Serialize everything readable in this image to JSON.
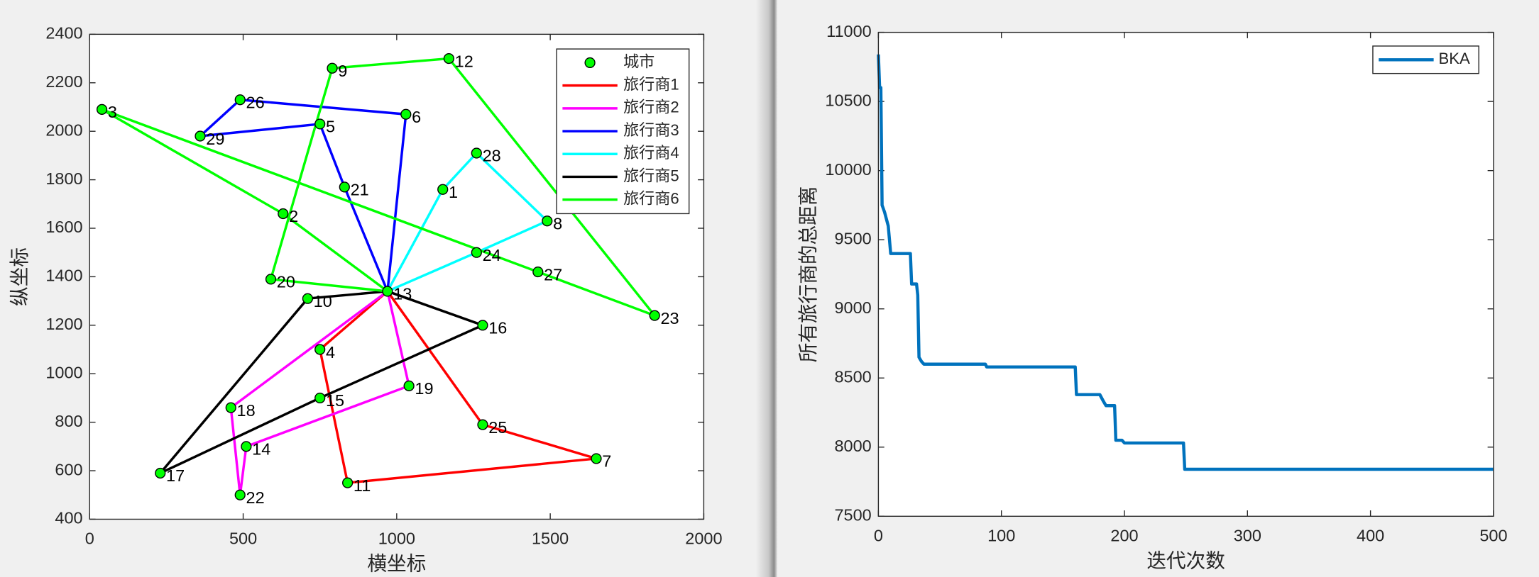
{
  "chart_data": [
    {
      "type": "route-map",
      "xlabel": "横坐标",
      "ylabel": "纵坐标",
      "xlim": [
        0,
        2000
      ],
      "xticks": [
        0,
        500,
        1000,
        1500,
        2000
      ],
      "ylim": [
        400,
        2400
      ],
      "yticks": [
        400,
        600,
        800,
        1000,
        1200,
        1400,
        1600,
        1800,
        2000,
        2200,
        2400
      ],
      "cities": {
        "name": "城市",
        "color": "#00ff00",
        "labels": [
          1,
          2,
          3,
          4,
          5,
          6,
          7,
          8,
          9,
          10,
          11,
          12,
          13,
          14,
          15,
          16,
          17,
          18,
          19,
          20,
          21,
          22,
          23,
          24,
          25,
          26,
          27,
          28,
          29
        ],
        "x": [
          1150,
          630,
          40,
          750,
          750,
          1030,
          1650,
          1490,
          790,
          710,
          840,
          1170,
          970,
          510,
          750,
          1280,
          230,
          460,
          1040,
          590,
          830,
          490,
          1840,
          1260,
          1280,
          490,
          1460,
          1260,
          360
        ],
        "y": [
          1760,
          1660,
          2090,
          1100,
          2030,
          2070,
          650,
          1630,
          2260,
          1310,
          550,
          2300,
          1340,
          700,
          900,
          1200,
          590,
          860,
          950,
          1390,
          1770,
          500,
          1240,
          1500,
          790,
          2130,
          1420,
          1910,
          1980
        ]
      },
      "series": [
        {
          "name": "旅行商1",
          "color": "#ff0000",
          "route": [
            13,
            4,
            11,
            7,
            25,
            13
          ]
        },
        {
          "name": "旅行商2",
          "color": "#ff00ff",
          "route": [
            13,
            18,
            22,
            14,
            19,
            13
          ]
        },
        {
          "name": "旅行商3",
          "color": "#0000ff",
          "route": [
            13,
            21,
            5,
            29,
            26,
            6,
            13
          ]
        },
        {
          "name": "旅行商4",
          "color": "#00ffff",
          "route": [
            13,
            1,
            28,
            8,
            24,
            13
          ]
        },
        {
          "name": "旅行商5",
          "color": "#000000",
          "route": [
            13,
            10,
            17,
            15,
            16,
            13
          ]
        },
        {
          "name": "旅行商6",
          "color": "#00ff00",
          "route": [
            13,
            2,
            3,
            27,
            23,
            12,
            9,
            20,
            13
          ]
        }
      ]
    },
    {
      "type": "line",
      "xlabel": "迭代次数",
      "ylabel": "所有旅行商的总距离",
      "xlim": [
        0,
        500
      ],
      "xticks": [
        0,
        100,
        200,
        300,
        400,
        500
      ],
      "ylim": [
        7500,
        11000
      ],
      "yticks": [
        7500,
        8000,
        8500,
        9000,
        9500,
        10000,
        10500,
        11000
      ],
      "x": [
        0,
        1,
        2,
        3,
        5,
        8,
        10,
        26,
        27,
        31,
        32,
        33,
        35,
        37,
        87,
        88,
        160,
        161,
        180,
        183,
        185,
        192,
        193,
        198,
        200,
        248,
        249,
        500
      ],
      "series": [
        {
          "name": "BKA",
          "color": "#0072bd",
          "values": [
            10840,
            10600,
            10600,
            9750,
            9700,
            9600,
            9400,
            9400,
            9180,
            9180,
            9100,
            8650,
            8620,
            8600,
            8600,
            8580,
            8580,
            8380,
            8380,
            8330,
            8300,
            8300,
            8050,
            8050,
            8030,
            8030,
            7840,
            7840
          ]
        }
      ]
    }
  ]
}
